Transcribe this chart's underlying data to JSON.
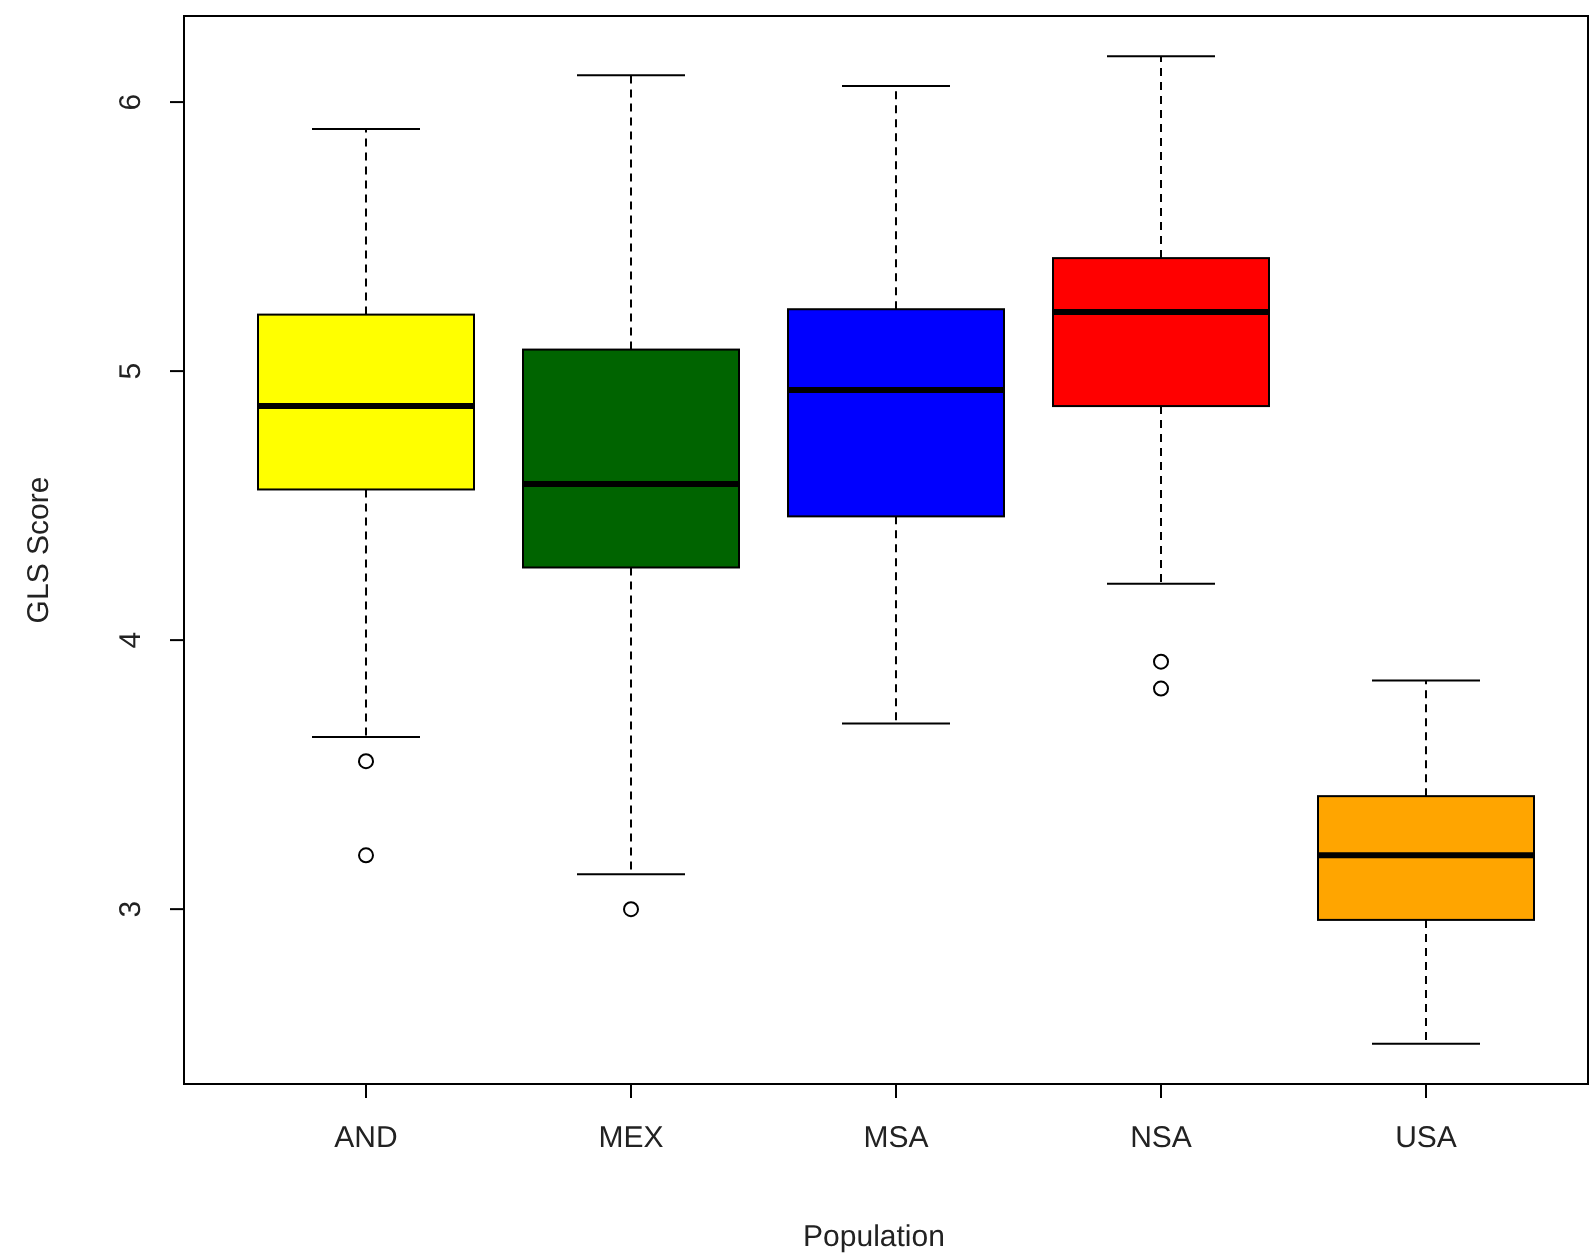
{
  "chart_data": {
    "type": "box",
    "xlabel": "Population",
    "ylabel": "GLS Score",
    "categories": [
      "AND",
      "MEX",
      "MSA",
      "NSA",
      "USA"
    ],
    "colors": [
      "#ffff00",
      "#006400",
      "#0000ff",
      "#ff0000",
      "#ffa500"
    ],
    "boxes": [
      {
        "low": 3.64,
        "q1": 4.56,
        "median": 4.87,
        "q3": 5.21,
        "high": 5.9,
        "outliers": [
          3.55,
          3.2
        ]
      },
      {
        "low": 3.13,
        "q1": 4.27,
        "median": 4.58,
        "q3": 5.08,
        "high": 6.1,
        "outliers": [
          3.0
        ]
      },
      {
        "low": 3.69,
        "q1": 4.46,
        "median": 4.93,
        "q3": 5.23,
        "high": 6.06
      },
      {
        "low": 4.21,
        "q1": 4.87,
        "median": 5.22,
        "q3": 5.42,
        "high": 6.17,
        "outliers": [
          3.92,
          3.82
        ]
      },
      {
        "low": 2.5,
        "q1": 2.96,
        "median": 3.2,
        "q3": 3.42,
        "high": 3.85
      }
    ],
    "ylim": [
      2.35,
      6.32
    ],
    "yticks": [
      3,
      4,
      5,
      6
    ],
    "grid": false
  }
}
